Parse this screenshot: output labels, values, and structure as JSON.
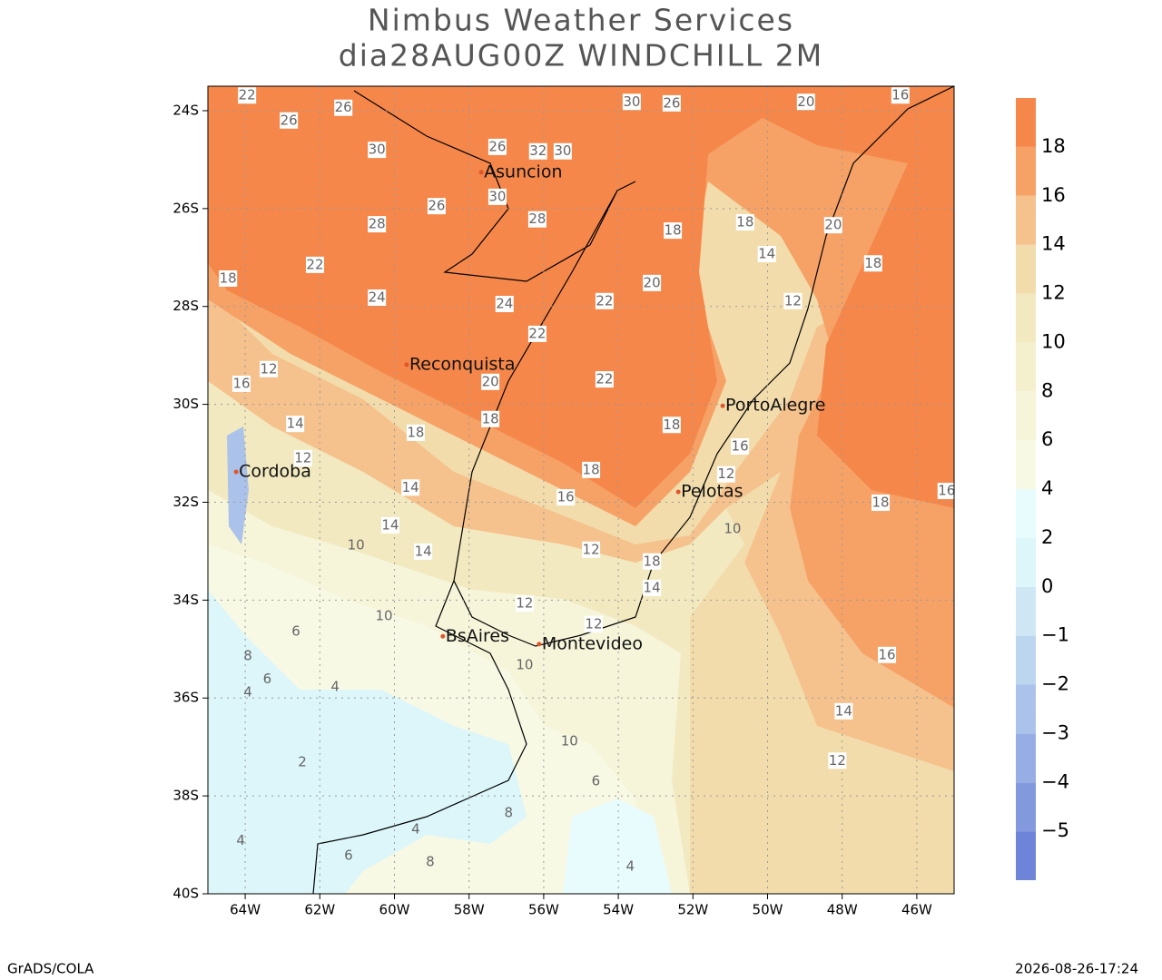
{
  "chart_data": {
    "type": "contour",
    "title": "Nimbus Weather Services",
    "subtitle": "dia28AUG00Z WINDCHILL 2M",
    "xlim": [
      -65,
      -45
    ],
    "ylim": [
      -40,
      -23.5
    ],
    "xticks": [
      {
        "value": -64,
        "label": "64W"
      },
      {
        "value": -62,
        "label": "62W"
      },
      {
        "value": -60,
        "label": "60W"
      },
      {
        "value": -58,
        "label": "58W"
      },
      {
        "value": -56,
        "label": "56W"
      },
      {
        "value": -54,
        "label": "54W"
      },
      {
        "value": -52,
        "label": "52W"
      },
      {
        "value": -50,
        "label": "50W"
      },
      {
        "value": -48,
        "label": "48W"
      },
      {
        "value": -46,
        "label": "46W"
      }
    ],
    "yticks": [
      {
        "value": -24,
        "label": "24S"
      },
      {
        "value": -26,
        "label": "26S"
      },
      {
        "value": -28,
        "label": "28S"
      },
      {
        "value": -30,
        "label": "30S"
      },
      {
        "value": -32,
        "label": "32S"
      },
      {
        "value": -34,
        "label": "34S"
      },
      {
        "value": -36,
        "label": "36S"
      },
      {
        "value": -38,
        "label": "38S"
      },
      {
        "value": -40,
        "label": "40S"
      }
    ],
    "grid": true,
    "levels": [
      {
        "value": -5,
        "label": "−5"
      },
      {
        "value": -4,
        "label": "−4"
      },
      {
        "value": -3,
        "label": "−3"
      },
      {
        "value": -2,
        "label": "−2"
      },
      {
        "value": -1,
        "label": "−1"
      },
      0,
      2,
      4,
      6,
      8,
      10,
      12,
      14,
      16,
      18
    ],
    "level_colors": [
      "#6e84d8",
      "#8299de",
      "#97aee4",
      "#abc3ea",
      "#bdd6f0",
      "#cfe7f4",
      "#dcf6fa",
      "#e8fcfd",
      "#f8f9e4",
      "#f6f5da",
      "#f4f0cd",
      "#f2e9c0",
      "#f2dcab",
      "#f5c28d",
      "#f6a266",
      "#f5874a"
    ],
    "cities": [
      {
        "name": "Asuncion",
        "lon": -57.6,
        "lat": -25.26
      },
      {
        "name": "Reconquista",
        "lon": -59.6,
        "lat": -29.19
      },
      {
        "name": "Cordoba",
        "lon": -64.17,
        "lat": -31.38
      },
      {
        "name": "PortoAlegre",
        "lon": -51.13,
        "lat": -30.03
      },
      {
        "name": "Pelotas",
        "lon": -52.32,
        "lat": -31.79
      },
      {
        "name": "BsAires",
        "lon": -58.63,
        "lat": -34.74
      },
      {
        "name": "Montevideo",
        "lon": -56.05,
        "lat": -34.9
      }
    ],
    "contour_labels": [
      {
        "value": 22,
        "lon": -63.95,
        "lat": -23.69
      },
      {
        "value": 26,
        "lon": -62.83,
        "lat": -24.2
      },
      {
        "value": 26,
        "lon": -61.37,
        "lat": -23.94
      },
      {
        "value": 30,
        "lon": -60.47,
        "lat": -24.8
      },
      {
        "value": 26,
        "lon": -57.24,
        "lat": -24.74
      },
      {
        "value": 32,
        "lon": -56.15,
        "lat": -24.83
      },
      {
        "value": 30,
        "lon": -55.49,
        "lat": -24.83
      },
      {
        "value": 30,
        "lon": -53.64,
        "lat": -23.82
      },
      {
        "value": 26,
        "lon": -52.57,
        "lat": -23.85
      },
      {
        "value": 20,
        "lon": -48.97,
        "lat": -23.82
      },
      {
        "value": 16,
        "lon": -46.44,
        "lat": -23.69
      },
      {
        "value": 30,
        "lon": -57.24,
        "lat": -25.76
      },
      {
        "value": 26,
        "lon": -58.87,
        "lat": -25.95
      },
      {
        "value": 28,
        "lon": -60.47,
        "lat": -26.32
      },
      {
        "value": 28,
        "lon": -56.17,
        "lat": -26.22
      },
      {
        "value": 22,
        "lon": -62.13,
        "lat": -27.15
      },
      {
        "value": 18,
        "lon": -64.46,
        "lat": -27.43
      },
      {
        "value": 24,
        "lon": -60.47,
        "lat": -27.82
      },
      {
        "value": 24,
        "lon": -57.05,
        "lat": -27.95
      },
      {
        "value": 22,
        "lon": -54.37,
        "lat": -27.89
      },
      {
        "value": 20,
        "lon": -53.1,
        "lat": -27.52
      },
      {
        "value": 18,
        "lon": -52.54,
        "lat": -26.45
      },
      {
        "value": 18,
        "lon": -50.6,
        "lat": -26.28
      },
      {
        "value": 20,
        "lon": -48.24,
        "lat": -26.34
      },
      {
        "value": 18,
        "lon": -47.17,
        "lat": -27.12
      },
      {
        "value": 14,
        "lon": -50.02,
        "lat": -26.93
      },
      {
        "value": 12,
        "lon": -49.32,
        "lat": -27.89
      },
      {
        "value": 22,
        "lon": -56.17,
        "lat": -28.56
      },
      {
        "value": 20,
        "lon": -57.43,
        "lat": -29.54
      },
      {
        "value": 22,
        "lon": -54.37,
        "lat": -29.49
      },
      {
        "value": 16,
        "lon": -64.1,
        "lat": -29.58
      },
      {
        "value": 12,
        "lon": -63.37,
        "lat": -29.28
      },
      {
        "value": 14,
        "lon": -62.66,
        "lat": -30.4
      },
      {
        "value": 18,
        "lon": -59.43,
        "lat": -30.58
      },
      {
        "value": 18,
        "lon": -57.43,
        "lat": -30.3
      },
      {
        "value": 18,
        "lon": -52.57,
        "lat": -30.42
      },
      {
        "value": 16,
        "lon": -50.74,
        "lat": -30.86
      },
      {
        "value": 12,
        "lon": -62.45,
        "lat": -31.1
      },
      {
        "value": 14,
        "lon": -59.57,
        "lat": -31.7
      },
      {
        "value": 16,
        "lon": -55.41,
        "lat": -31.9
      },
      {
        "value": 18,
        "lon": -54.73,
        "lat": -31.34
      },
      {
        "value": 18,
        "lon": -46.97,
        "lat": -32.01
      },
      {
        "value": 16,
        "lon": -45.2,
        "lat": -31.77
      },
      {
        "value": 12,
        "lon": -51.11,
        "lat": -31.43
      },
      {
        "value": 10,
        "lon": -50.94,
        "lat": -32.55
      },
      {
        "value": 14,
        "lon": -60.11,
        "lat": -32.47
      },
      {
        "value": 10,
        "lon": -61.03,
        "lat": -32.88
      },
      {
        "value": 14,
        "lon": -59.23,
        "lat": -33.01
      },
      {
        "value": 12,
        "lon": -54.73,
        "lat": -32.97
      },
      {
        "value": 18,
        "lon": -53.1,
        "lat": -33.21
      },
      {
        "value": 14,
        "lon": -53.1,
        "lat": -33.75
      },
      {
        "value": 12,
        "lon": -56.51,
        "lat": -34.07
      },
      {
        "value": 10,
        "lon": -60.28,
        "lat": -34.33
      },
      {
        "value": 6,
        "lon": -62.64,
        "lat": -34.64
      },
      {
        "value": 12,
        "lon": -54.66,
        "lat": -34.49
      },
      {
        "value": 16,
        "lon": -46.8,
        "lat": -35.12
      },
      {
        "value": 8,
        "lon": -63.93,
        "lat": -35.14
      },
      {
        "value": 6,
        "lon": -63.41,
        "lat": -35.62
      },
      {
        "value": 10,
        "lon": -56.51,
        "lat": -35.33
      },
      {
        "value": 4,
        "lon": -61.59,
        "lat": -35.77
      },
      {
        "value": 4,
        "lon": -63.93,
        "lat": -35.88
      },
      {
        "value": 14,
        "lon": -47.96,
        "lat": -36.27
      },
      {
        "value": 10,
        "lon": -55.31,
        "lat": -36.89
      },
      {
        "value": 12,
        "lon": -48.13,
        "lat": -37.28
      },
      {
        "value": 2,
        "lon": -62.47,
        "lat": -37.31
      },
      {
        "value": 6,
        "lon": -54.6,
        "lat": -37.7
      },
      {
        "value": 8,
        "lon": -56.94,
        "lat": -38.35
      },
      {
        "value": 4,
        "lon": -59.43,
        "lat": -38.68
      },
      {
        "value": 4,
        "lon": -64.12,
        "lat": -38.92
      },
      {
        "value": 6,
        "lon": -61.23,
        "lat": -39.22
      },
      {
        "value": 8,
        "lon": -59.04,
        "lat": -39.35
      },
      {
        "value": 4,
        "lon": -53.68,
        "lat": -39.44
      }
    ],
    "footer_left": "GrADS/COLA",
    "footer_right": "2026-08-26-17:24"
  }
}
